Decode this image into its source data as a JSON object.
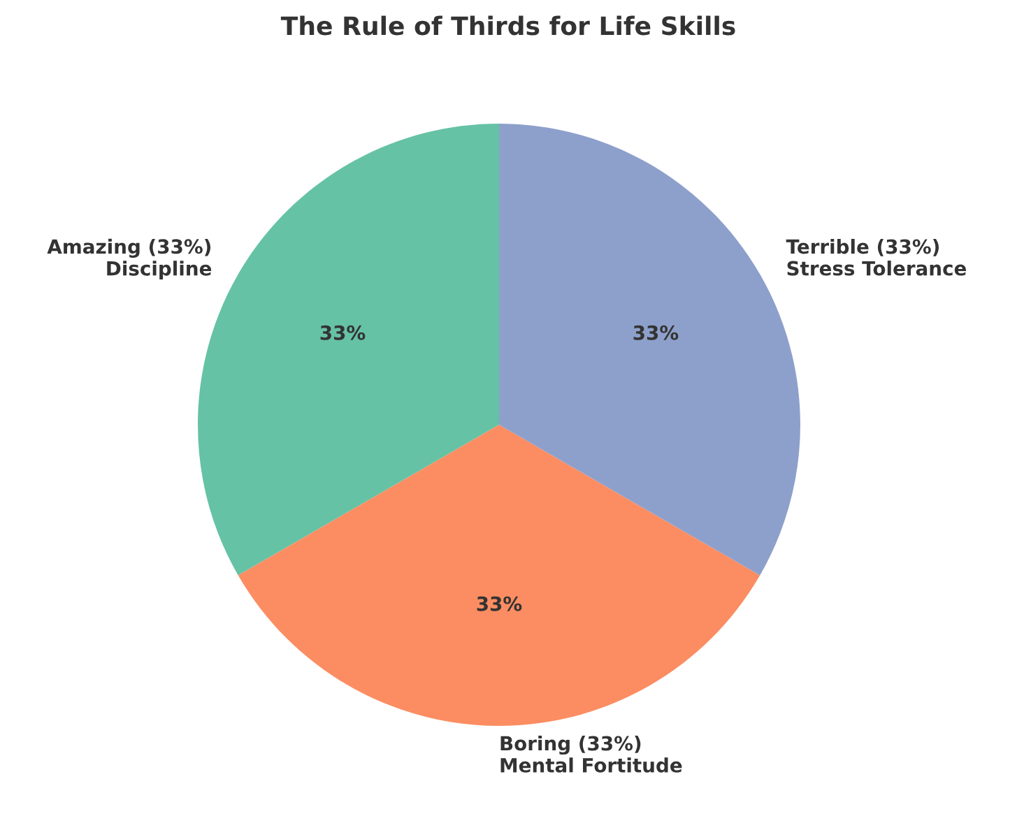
{
  "chart_data": {
    "type": "pie",
    "title": "The Rule of Thirds for Life Skills",
    "categories": [
      "Amazing (33%)\nDiscipline",
      "Boring (33%)\nMental Fortitude",
      "Terrible (33%)\nStress Tolerance"
    ],
    "values": [
      33.33,
      33.33,
      33.33
    ],
    "colors": [
      "#66c2a5",
      "#fc8d62",
      "#8da0cb"
    ],
    "value_labels": [
      "33%",
      "33%",
      "33%"
    ]
  }
}
